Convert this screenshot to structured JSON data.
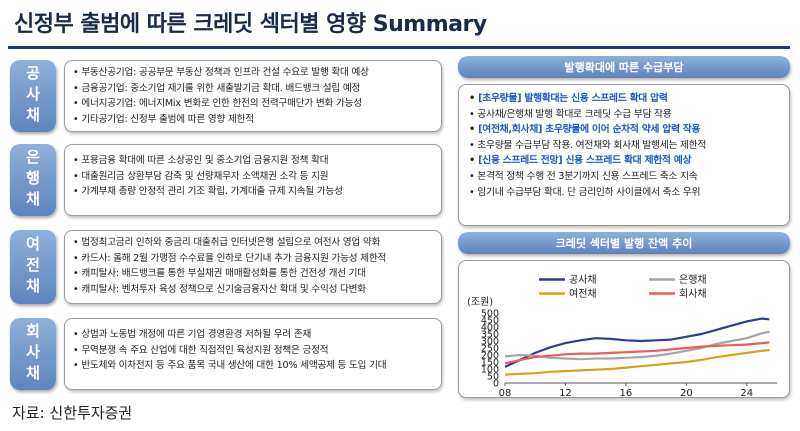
{
  "title": "신정부 출범에 따른 크레딧 섹터별 영향 Summary",
  "sectors": [
    {
      "name": "공사채",
      "items": [
        "부동산공기업: 공공부문 부동산 정책과 인프라 건설 수요로 발행 확대 예상",
        "금융공기업: 중소기업 재기를 위한 새출발기금 확대. 배드뱅크 설립 예정",
        "에너지공기업: 에너지Mix 변화로 인한 한전의 전력구매단가 변화 가능성",
        "기타공기업: 신정부 출범에 따른 영향 제한적"
      ]
    },
    {
      "name": "은행채",
      "items": [
        "포용금융 확대에 따른 소상공인 및 중소기업 금융지원 정책 확대",
        "대출원리금 상환부담 감축 및 선량채무자 소액채권 소각 등 지원",
        "가계부채 총량 안정적 관리 기조 확립. 가계대출 규제 지속될 가능성"
      ]
    },
    {
      "name": "여전채",
      "items": [
        "법정최고금리 인하와 중금리 대출취급 인터넷은행 설립으로 여전사 영업 약화",
        "카드사: 올해 2월 가맹점 수수료율 인하로 단기내 추가 금융지원 가능성 제한적",
        "캐피탈사: 배드뱅크를 통한 부실채권 매매활성화를 통한 건전성 개선 기대",
        "캐피탈사: 벤처투자 육성 정책으로 신기술금융자산 확대 및 수익성 다변화"
      ]
    },
    {
      "name": "회사채",
      "items": [
        "상법과 노동법 개정에 따른 기업 경영환경 저하될 우려 존재",
        "무역분쟁 속 주요 산업에 대한 직접적인 육성지원 정책은 긍정적",
        "반도체와 이차전지 등 주요 품목 국내 생산에 대한 10% 세액공제 등 도입 기대"
      ]
    }
  ],
  "demand_panel": {
    "header": "발행확대에 따른 수급부담",
    "items": [
      {
        "text": "[초우량물] 발행확대는 신용 스프레드 확대 압력",
        "highlight": true
      },
      {
        "text": "공사채/은행채 발행 확대로 크레딧 수급 부담 작용",
        "highlight": false
      },
      {
        "text": "[여전채,회사채] 초우량물에 이어 순차적 약세 압력 작용",
        "highlight": true
      },
      {
        "text": "초우량물 수급부담 작용. 여전채와 회사채 발행세는 제한적",
        "highlight": false
      },
      {
        "text": "[신용 스프레드 전망] 신용 스프레드 확대 제한적 예상",
        "highlight": true
      },
      {
        "text": "본격적 정책 수행 전 3분기까지 신용 스프레드 축소 지속",
        "highlight": false
      },
      {
        "text": "임기내 수급부담 확대. 단 금리인하 사이클에서 축소 우위",
        "highlight": false
      }
    ]
  },
  "chart_panel": {
    "header": "크레딧 섹터별 발행 잔액 추이"
  },
  "chart_data": {
    "type": "line",
    "unit_label": "(조원)",
    "ylim": [
      0,
      500
    ],
    "yticks": [
      0,
      50,
      100,
      150,
      200,
      250,
      300,
      350,
      400,
      450,
      500
    ],
    "xlim": [
      2008,
      2026
    ],
    "xticks": [
      2008,
      2012,
      2016,
      2020,
      2024
    ],
    "xtick_labels": [
      "08",
      "12",
      "16",
      "20",
      "24"
    ],
    "legend_position": "top",
    "series": [
      {
        "name": "공사채",
        "color": "#2e3f8f",
        "x": [
          2008,
          2009,
          2010,
          2011,
          2012,
          2013,
          2014,
          2015,
          2016,
          2017,
          2018,
          2019,
          2020,
          2021,
          2022,
          2023,
          2024,
          2025,
          2025.5
        ],
        "y": [
          115,
          165,
          215,
          255,
          285,
          305,
          320,
          315,
          305,
          300,
          305,
          310,
          330,
          350,
          380,
          410,
          440,
          460,
          455
        ]
      },
      {
        "name": "은행채",
        "color": "#a6a6a6",
        "x": [
          2008,
          2009,
          2010,
          2011,
          2012,
          2013,
          2014,
          2015,
          2016,
          2017,
          2018,
          2019,
          2020,
          2021,
          2022,
          2023,
          2024,
          2025,
          2025.5
        ],
        "y": [
          190,
          200,
          195,
          180,
          175,
          170,
          175,
          175,
          180,
          185,
          195,
          210,
          230,
          250,
          280,
          300,
          320,
          355,
          365
        ]
      },
      {
        "name": "여전채",
        "color": "#d9a21b",
        "x": [
          2008,
          2009,
          2010,
          2011,
          2012,
          2013,
          2014,
          2015,
          2016,
          2017,
          2018,
          2019,
          2020,
          2021,
          2022,
          2023,
          2024,
          2025,
          2025.5
        ],
        "y": [
          60,
          65,
          70,
          80,
          85,
          90,
          95,
          100,
          110,
          120,
          130,
          140,
          150,
          165,
          185,
          200,
          215,
          230,
          235
        ]
      },
      {
        "name": "회사채",
        "color": "#ef5b5b",
        "x": [
          2008,
          2009,
          2010,
          2011,
          2012,
          2013,
          2014,
          2015,
          2016,
          2017,
          2018,
          2019,
          2020,
          2021,
          2022,
          2023,
          2024,
          2025,
          2025.5
        ],
        "y": [
          140,
          165,
          185,
          195,
          205,
          210,
          210,
          215,
          220,
          225,
          230,
          240,
          250,
          260,
          265,
          270,
          275,
          285,
          290
        ]
      }
    ]
  },
  "source": "자료: 신한투자증권"
}
